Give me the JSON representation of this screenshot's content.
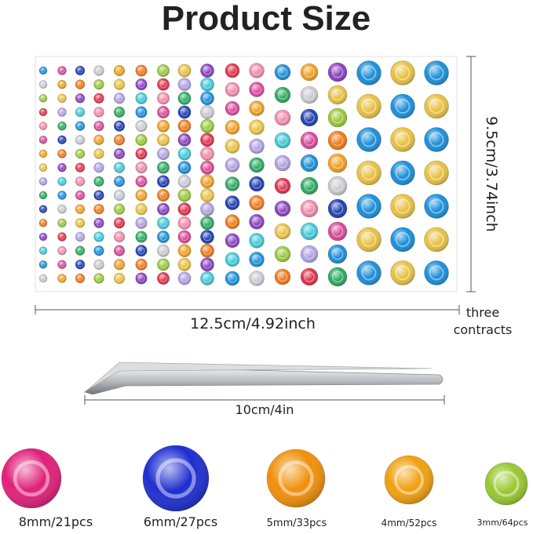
{
  "header": {
    "title": "Product Size"
  },
  "sheet": {
    "height_label": "9.5cm/3.74inch",
    "width_label": "12.5cm/4.92inch",
    "count_label": "three contracts"
  },
  "tweezers": {
    "length_label": "10cm/4in"
  },
  "gems": [
    {
      "label": "8mm/21pcs"
    },
    {
      "label": "6mm/27pcs"
    },
    {
      "label": "5mm/33pcs"
    },
    {
      "label": "4mm/52pcs"
    },
    {
      "label": "3mm/64pcs"
    }
  ]
}
